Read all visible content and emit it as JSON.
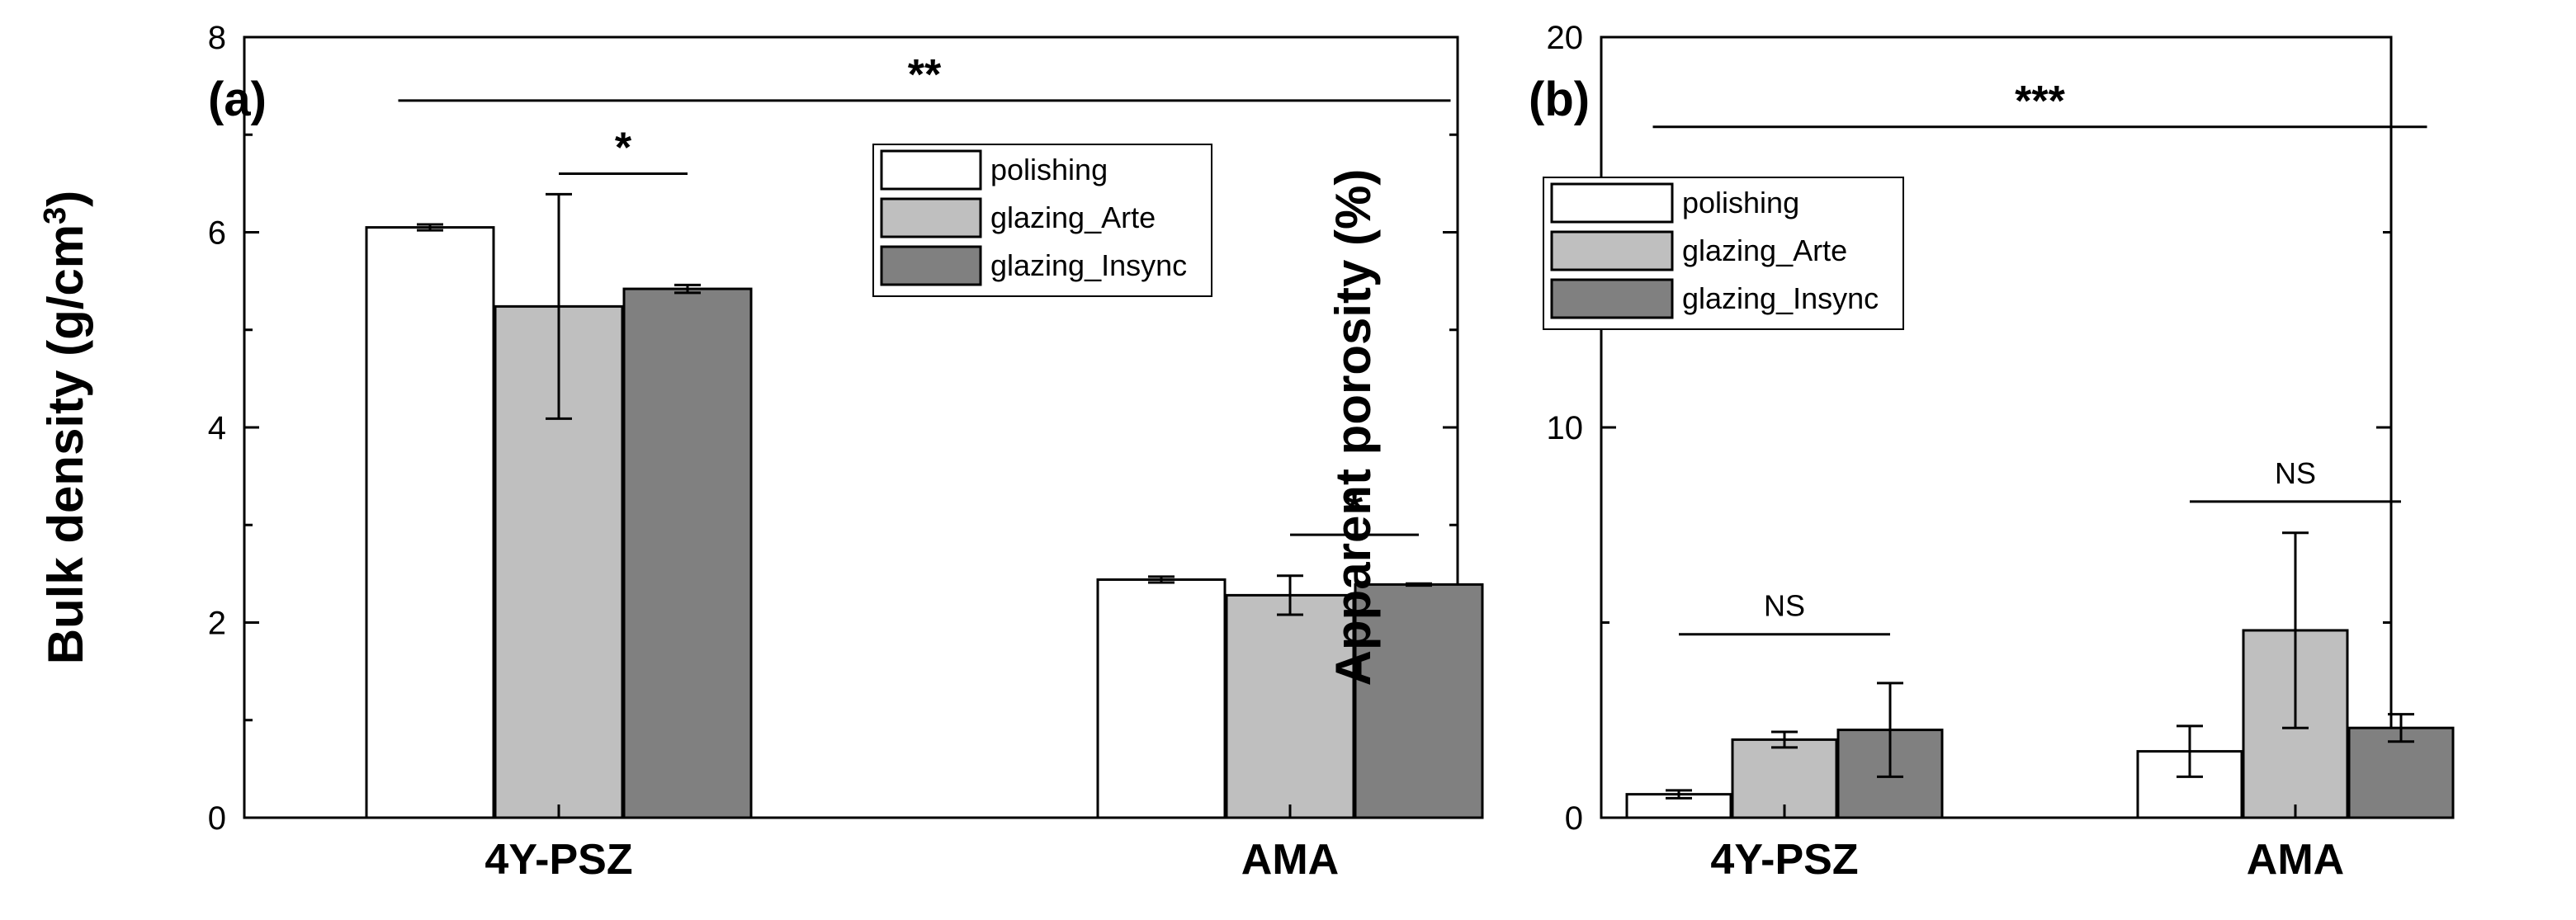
{
  "chart_data": [
    {
      "type": "bar",
      "panel_label": "(a)",
      "categories": [
        "4Y-PSZ",
        "AMA"
      ],
      "series": [
        {
          "name": "polishing",
          "values": [
            6.05,
            2.44
          ],
          "errors": [
            0.03,
            0.03
          ],
          "color": "#ffffff"
        },
        {
          "name": "glazing_Arte",
          "values": [
            5.24,
            2.28
          ],
          "errors": [
            1.15,
            0.2
          ],
          "color": "#bfbfbf"
        },
        {
          "name": "glazing_Insync",
          "values": [
            5.42,
            2.39
          ],
          "errors": [
            0.04,
            0.01
          ],
          "color": "#808080"
        }
      ],
      "ylabel_main": "Bulk density (g/cm",
      "ylabel_sup": "3",
      "ylabel_end": ")",
      "ylim": [
        0,
        8
      ],
      "yticks": [
        "0",
        "2",
        "4",
        "6",
        "8"
      ],
      "legend_position": "top-right",
      "significance": [
        {
          "label": "**",
          "from": "4Y-PSZ",
          "to": "AMA",
          "y": 7.35
        },
        {
          "label": "*",
          "category": "4Y-PSZ",
          "from_series": 1,
          "to_series": 2,
          "y": 6.6
        },
        {
          "label": "*",
          "category": "AMA",
          "from_series": 1,
          "to_series": 2,
          "y": 2.9
        }
      ]
    },
    {
      "type": "bar",
      "panel_label": "(b)",
      "categories": [
        "4Y-PSZ",
        "AMA"
      ],
      "series": [
        {
          "name": "polishing",
          "values": [
            0.6,
            1.7
          ],
          "errors": [
            0.1,
            0.65
          ],
          "color": "#ffffff"
        },
        {
          "name": "glazing_Arte",
          "values": [
            2.0,
            4.8
          ],
          "errors": [
            0.2,
            2.5
          ],
          "color": "#bfbfbf"
        },
        {
          "name": "glazing_Insync",
          "values": [
            2.25,
            2.3
          ],
          "errors": [
            1.2,
            0.35
          ],
          "color": "#808080"
        }
      ],
      "ylabel_main": "Apparent porosity (%)",
      "ylabel_sup": "",
      "ylabel_end": "",
      "ylim": [
        0,
        20
      ],
      "yticks": [
        "0",
        "10",
        "20"
      ],
      "legend_position": "top-left",
      "significance": [
        {
          "label": "***",
          "from": "4Y-PSZ",
          "to": "AMA",
          "y": 17.7
        },
        {
          "label": "NS",
          "category": "4Y-PSZ",
          "from_series": 0,
          "to_series": 2,
          "y": 4.7
        },
        {
          "label": "NS",
          "category": "AMA",
          "from_series": 0,
          "to_series": 2,
          "y": 8.1
        }
      ]
    }
  ]
}
